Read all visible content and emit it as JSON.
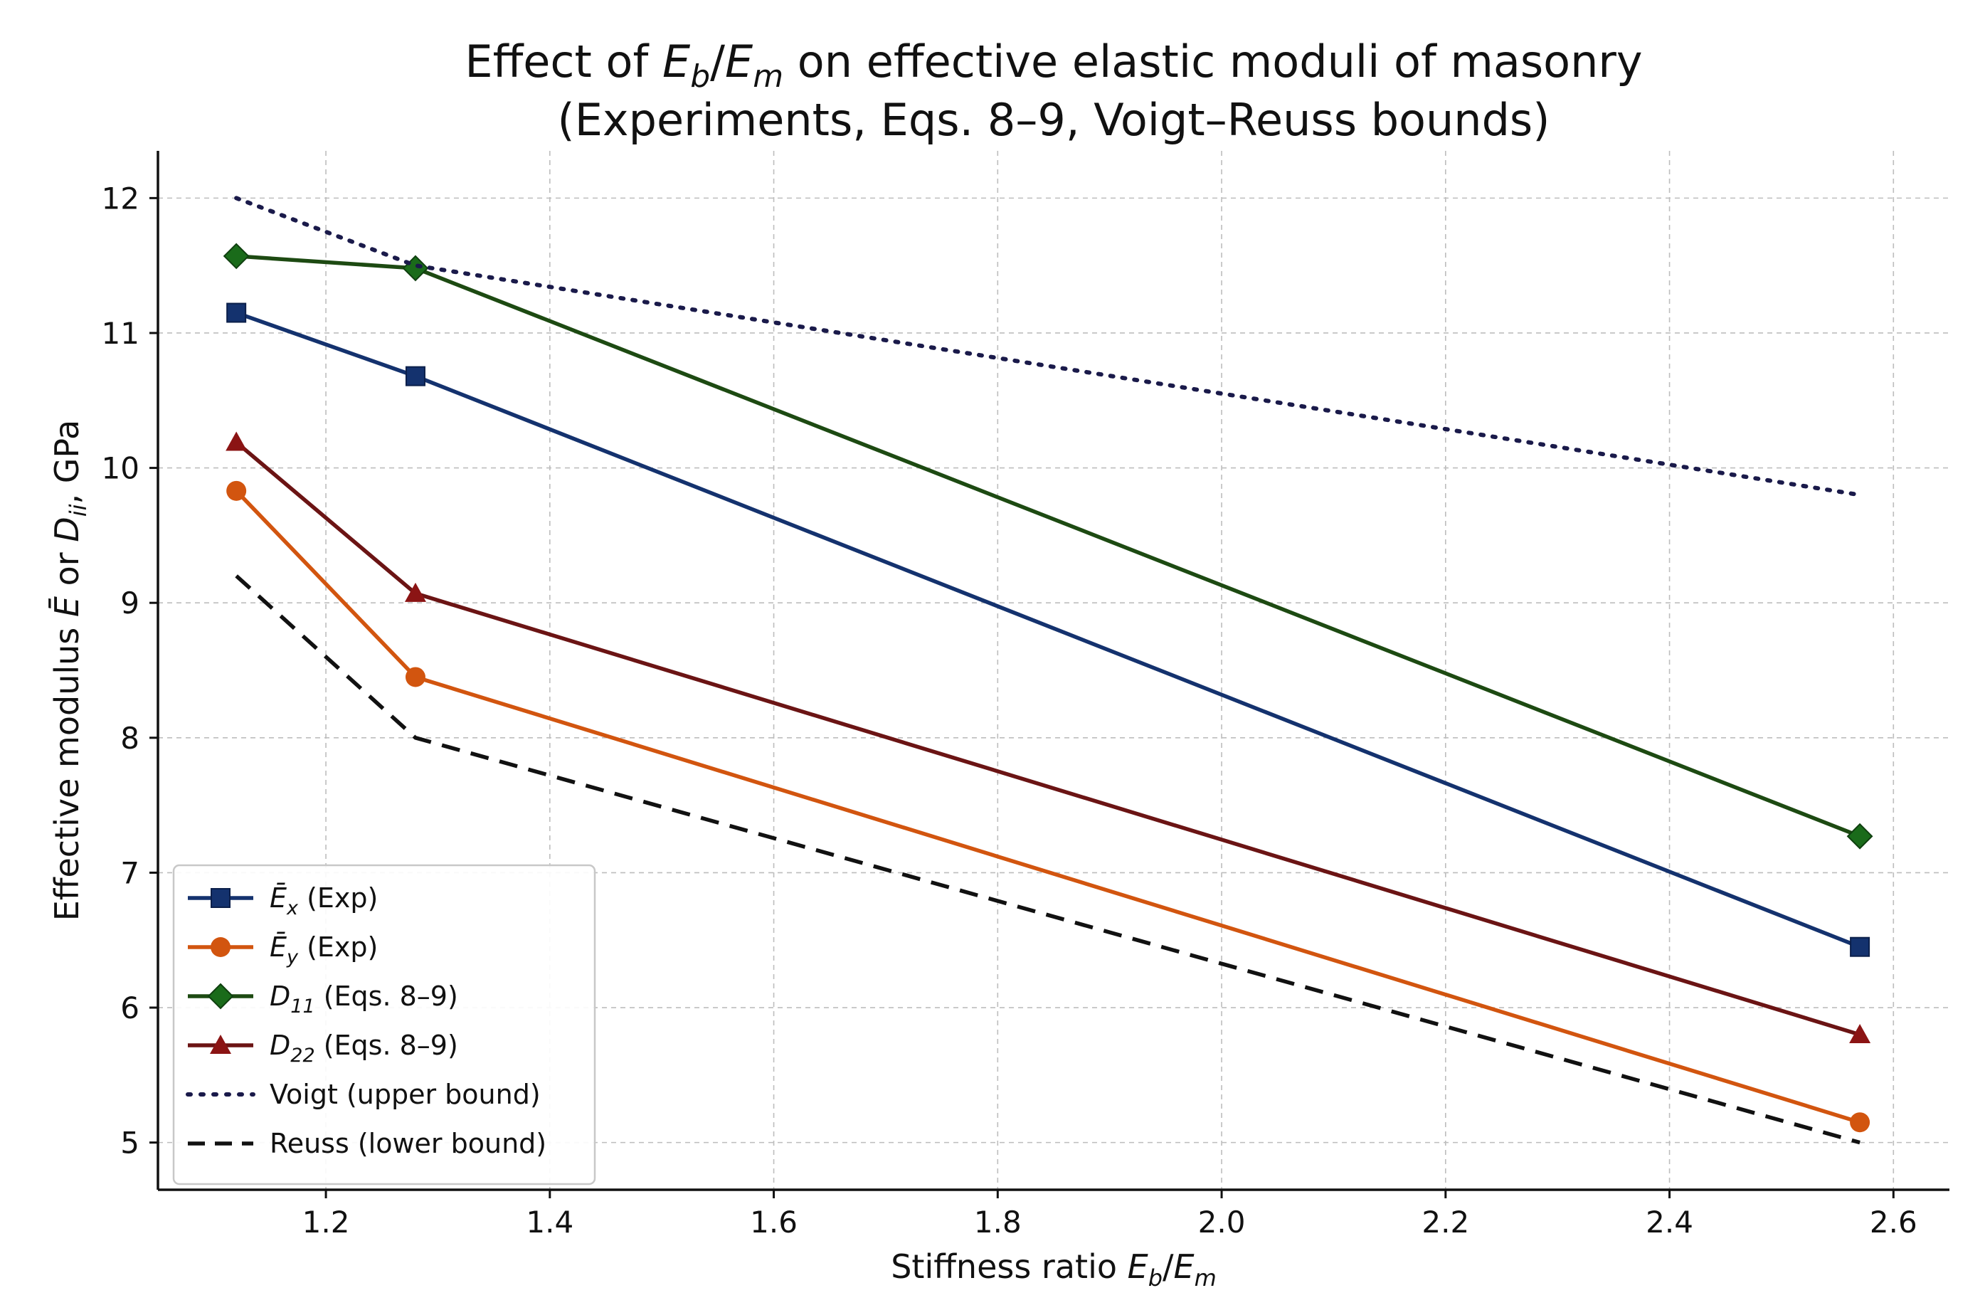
{
  "chart_data": {
    "type": "line",
    "title_line1": "Effect of E_b/E_m on effective elastic moduli of masonry",
    "title_line2": "(Experiments, Eqs. 8–9, Voigt–Reuss bounds)",
    "title_parts": {
      "prefix": "Effect of ",
      "var1": "E",
      "sub1": "b",
      "slash": "/",
      "var2": "E",
      "sub2": "m",
      "suffix": " on effective elastic moduli of masonry"
    },
    "xlabel": "Stiffness ratio E_b/E_m",
    "xlabel_parts": {
      "prefix": "Stiffness ratio ",
      "var1": "E",
      "sub1": "b",
      "slash": "/",
      "var2": "E",
      "sub2": "m"
    },
    "ylabel": "Effective modulus Ē or D_ii, GPa",
    "ylabel_parts": {
      "prefix": "Effective modulus ",
      "var1": "Ē",
      "mid": " or ",
      "var2": "D",
      "sub2": "ii",
      "suffix": ", GPa"
    },
    "xlim": [
      1.05,
      2.65
    ],
    "ylim": [
      4.65,
      12.35
    ],
    "xticks": [
      1.2,
      1.4,
      1.6,
      1.8,
      2.0,
      2.2,
      2.4,
      2.6
    ],
    "xtick_labels": [
      "1.2",
      "1.4",
      "1.6",
      "1.8",
      "2.0",
      "2.2",
      "2.4",
      "2.6"
    ],
    "yticks": [
      5,
      6,
      7,
      8,
      9,
      10,
      11,
      12
    ],
    "ytick_labels": [
      "5",
      "6",
      "7",
      "8",
      "9",
      "10",
      "11",
      "12"
    ],
    "grid": true,
    "legend_position": "lower-left",
    "x": [
      1.12,
      1.28,
      2.57
    ],
    "series": [
      {
        "name": "Ē_x (Exp)",
        "label_var": "Ē",
        "label_sub": "x",
        "label_rest": " (Exp)",
        "values": [
          11.15,
          10.68,
          6.45
        ],
        "color": "#14326e",
        "marker": "square",
        "dash": "solid"
      },
      {
        "name": "Ē_y (Exp)",
        "label_var": "Ē",
        "label_sub": "y",
        "label_rest": " (Exp)",
        "values": [
          9.83,
          8.45,
          5.15
        ],
        "color": "#d2550f",
        "marker": "circle",
        "dash": "solid"
      },
      {
        "name": "D_11 (Eqs. 8–9)",
        "label_var": "D",
        "label_sub": "11",
        "label_rest": " (Eqs. 8–9)",
        "values": [
          11.57,
          11.48,
          7.27
        ],
        "color": "#1a6b1a",
        "marker": "diamond",
        "dash": "solid",
        "line_color": "#1d4a12"
      },
      {
        "name": "D_22 (Eqs. 8–9)",
        "label_var": "D",
        "label_sub": "22",
        "label_rest": " (Eqs. 8–9)",
        "values": [
          10.19,
          9.07,
          5.8
        ],
        "color": "#8b1414",
        "marker": "triangle",
        "dash": "solid",
        "line_color": "#6b1414"
      },
      {
        "name": "Voigt (upper bound)",
        "label_var": "",
        "label_sub": "",
        "label_rest": "Voigt (upper bound)",
        "values": [
          12.0,
          11.5,
          9.8
        ],
        "color": "#1a1a4a",
        "marker": "none",
        "dash": "dotted"
      },
      {
        "name": "Reuss (lower bound)",
        "label_var": "",
        "label_sub": "",
        "label_rest": "Reuss (lower bound)",
        "values": [
          9.2,
          8.0,
          5.0
        ],
        "color": "#111111",
        "marker": "none",
        "dash": "dashed"
      }
    ]
  }
}
